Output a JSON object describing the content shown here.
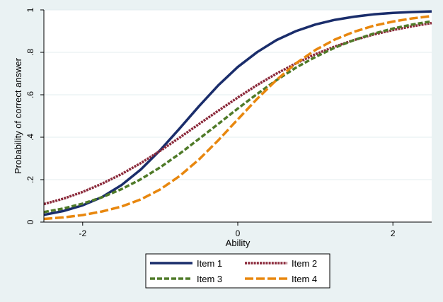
{
  "colors": {
    "background": "#eaf2f3",
    "plot_background": "#ffffff",
    "grid": "#e3ecef",
    "axis": "#000000",
    "legend_background": "#ffffff"
  },
  "chart_data": {
    "type": "line",
    "xlabel": "Ability",
    "ylabel": "Probability of correct answer",
    "xlim": [
      -2.5,
      2.5
    ],
    "ylim": [
      0,
      1
    ],
    "x_ticks": [
      -2,
      0,
      2
    ],
    "x_tick_labels": [
      "-2",
      "0",
      "2"
    ],
    "y_ticks": [
      0,
      0.2,
      0.4,
      0.6,
      0.8,
      1
    ],
    "y_tick_labels": [
      "0",
      ".2",
      ".4",
      ".6",
      ".8",
      "1"
    ],
    "grid": "horizontal",
    "legend_position": "bottom",
    "x": [
      -2.5,
      -2.25,
      -2.0,
      -1.75,
      -1.5,
      -1.25,
      -1.0,
      -0.75,
      -0.5,
      -0.25,
      0.0,
      0.25,
      0.5,
      0.75,
      1.0,
      1.25,
      1.5,
      1.75,
      2.0,
      2.25,
      2.5
    ],
    "series": [
      {
        "name": "Item 1",
        "color": "#1a2d6b",
        "style": "solid",
        "values": [
          0.034,
          0.052,
          0.079,
          0.118,
          0.174,
          0.248,
          0.339,
          0.441,
          0.546,
          0.645,
          0.731,
          0.801,
          0.858,
          0.9,
          0.931,
          0.953,
          0.968,
          0.979,
          0.986,
          0.99,
          0.993
        ]
      },
      {
        "name": "Item 2",
        "color": "#8b2a3b",
        "style": "dash-dot",
        "values": [
          0.085,
          0.11,
          0.142,
          0.181,
          0.226,
          0.278,
          0.336,
          0.398,
          0.462,
          0.525,
          0.587,
          0.646,
          0.7,
          0.748,
          0.791,
          0.827,
          0.858,
          0.884,
          0.905,
          0.923,
          0.938
        ]
      },
      {
        "name": "Item 3",
        "color": "#4f7a28",
        "style": "dash-short",
        "values": [
          0.047,
          0.064,
          0.087,
          0.117,
          0.155,
          0.202,
          0.258,
          0.322,
          0.392,
          0.463,
          0.535,
          0.604,
          0.669,
          0.728,
          0.778,
          0.822,
          0.858,
          0.888,
          0.912,
          0.931,
          0.946
        ]
      },
      {
        "name": "Item 4",
        "color": "#e8870e",
        "style": "dash-long",
        "values": [
          0.015,
          0.022,
          0.033,
          0.05,
          0.073,
          0.107,
          0.154,
          0.217,
          0.295,
          0.386,
          0.484,
          0.581,
          0.67,
          0.748,
          0.811,
          0.86,
          0.897,
          0.925,
          0.945,
          0.96,
          0.971
        ]
      }
    ]
  }
}
